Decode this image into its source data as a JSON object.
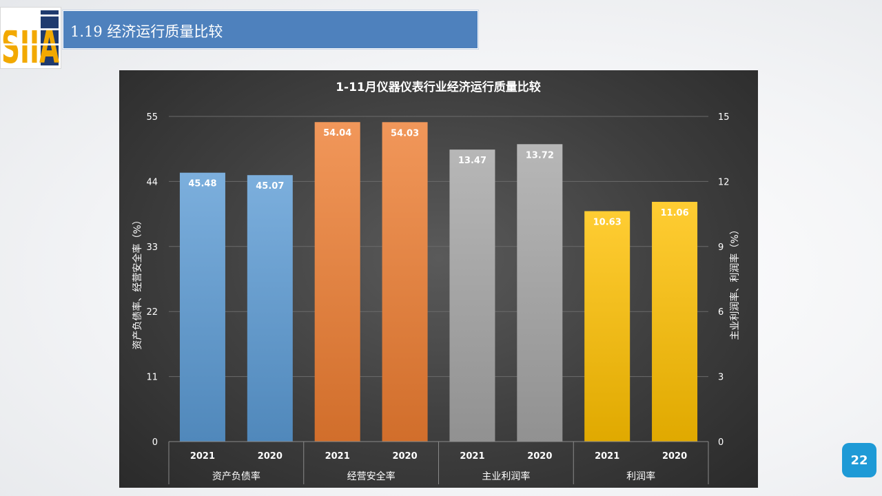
{
  "header": {
    "title": "1.19 经济运行质量比较"
  },
  "page": {
    "number": "22"
  },
  "logo": {
    "text": "SIIA"
  },
  "chart_data": {
    "type": "bar",
    "title": "1-11月仪器仪表行业经济运行质量比较",
    "ylabel": "资产负债率、经营安全率（%）",
    "y2label": "主业利润率、利润率（%）",
    "ylim": [
      0,
      55
    ],
    "y2lim": [
      0,
      15
    ],
    "yticks": [
      "0",
      "11",
      "22",
      "33",
      "44",
      "55"
    ],
    "y2ticks": [
      "0",
      "3",
      "6",
      "9",
      "12",
      "15"
    ],
    "grid": true,
    "groups": [
      {
        "name": "资产负债率",
        "axis": "left",
        "color": "#5b9bd5",
        "bars": [
          {
            "year": "2021",
            "value": 45.48,
            "label": "45.48"
          },
          {
            "year": "2020",
            "value": 45.07,
            "label": "45.07"
          }
        ]
      },
      {
        "name": "经营安全率",
        "axis": "left",
        "color": "#ed7d31",
        "bars": [
          {
            "year": "2021",
            "value": 54.04,
            "label": "54.04"
          },
          {
            "year": "2020",
            "value": 54.03,
            "label": "54.03"
          }
        ]
      },
      {
        "name": "主业利润率",
        "axis": "right",
        "color": "#a5a5a5",
        "bars": [
          {
            "year": "2021",
            "value": 13.47,
            "label": "13.47"
          },
          {
            "year": "2020",
            "value": 13.72,
            "label": "13.72"
          }
        ]
      },
      {
        "name": "利润率",
        "axis": "right",
        "color": "#ffc000",
        "bars": [
          {
            "year": "2021",
            "value": 10.63,
            "label": "10.63"
          },
          {
            "year": "2020",
            "value": 11.06,
            "label": "11.06"
          }
        ]
      }
    ]
  }
}
